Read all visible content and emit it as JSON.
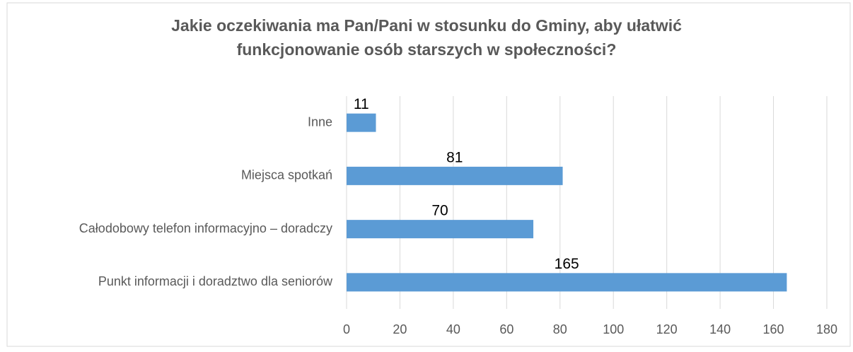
{
  "chart_data": {
    "type": "bar",
    "orientation": "horizontal",
    "title": [
      "Jakie oczekiwania ma Pan/Pani w stosunku do Gminy, aby ułatwić",
      "funkcjonowanie osób starszych w społeczności?"
    ],
    "categories": [
      "Inne",
      "Miejsca spotkań",
      "Całodobowy telefon informacyjno – doradczy",
      "Punkt informacji i doradztwo dla seniorów"
    ],
    "values": [
      11,
      81,
      70,
      165
    ],
    "color": "#5b9bd5",
    "xlim": [
      0,
      180
    ],
    "xticks": [
      0,
      20,
      40,
      60,
      80,
      100,
      120,
      140,
      160,
      180
    ],
    "grid": true
  }
}
